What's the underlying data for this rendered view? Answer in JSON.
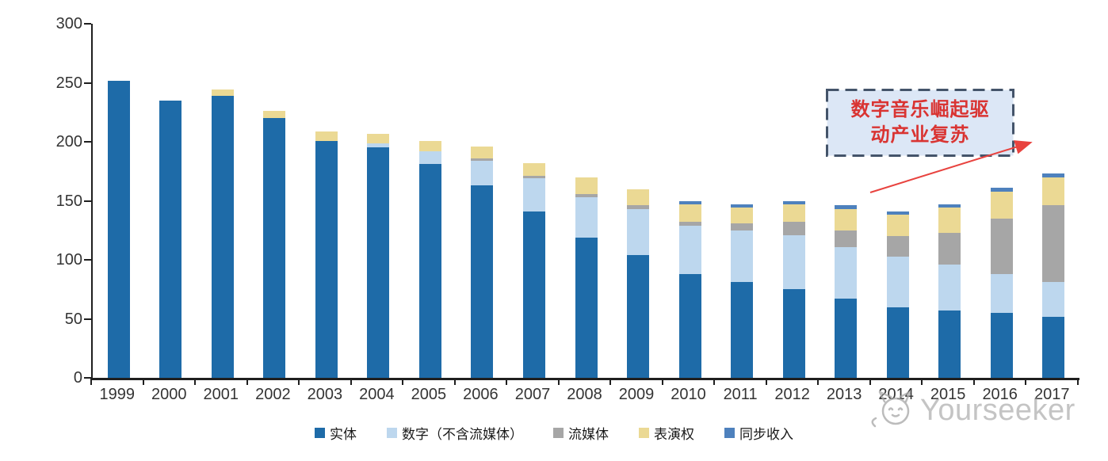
{
  "watermark": {
    "brand": "Yourseeker"
  },
  "chart_data": {
    "type": "bar",
    "stacked": true,
    "categories": [
      "1999",
      "2000",
      "2001",
      "2002",
      "2003",
      "2004",
      "2005",
      "2006",
      "2007",
      "2008",
      "2009",
      "2010",
      "2011",
      "2012",
      "2013",
      "2014",
      "2015",
      "2016",
      "2017"
    ],
    "series": [
      {
        "name": "实体",
        "color": "#1E6BA8",
        "values": [
          252,
          235,
          239,
          220,
          201,
          195,
          181,
          163,
          141,
          119,
          104,
          88,
          81,
          75,
          67,
          60,
          57,
          55,
          52
        ]
      },
      {
        "name": "数字（不含流媒体）",
        "color": "#BDD7EE",
        "values": [
          0,
          0,
          0,
          0,
          0,
          4,
          11,
          21,
          28,
          34,
          39,
          41,
          44,
          46,
          44,
          43,
          39,
          33,
          29
        ]
      },
      {
        "name": "流媒体",
        "color": "#A6A6A6",
        "values": [
          0,
          0,
          0,
          0,
          0,
          0,
          0,
          2,
          2,
          3,
          3,
          3,
          6,
          11,
          14,
          17,
          27,
          47,
          65
        ]
      },
      {
        "name": "表演权",
        "color": "#EBD994",
        "values": [
          0,
          0,
          5,
          6,
          8,
          8,
          9,
          10,
          11,
          14,
          14,
          15,
          13,
          15,
          18,
          18,
          21,
          23,
          24
        ]
      },
      {
        "name": "同步收入",
        "color": "#4E81BD",
        "values": [
          0,
          0,
          0,
          0,
          0,
          0,
          0,
          0,
          0,
          0,
          0,
          3,
          3,
          3,
          3,
          3,
          3,
          3,
          3
        ]
      }
    ],
    "ylim": [
      0,
      300
    ],
    "yticks": [
      0,
      50,
      100,
      150,
      200,
      250,
      300
    ],
    "grid": false,
    "legend_position": "bottom",
    "annotation": {
      "line1": "数字音乐崛起驱",
      "line2": "动产业复苏",
      "box_fill": "#DCE7F6",
      "box_border": "#44546A",
      "text_color": "#D93432",
      "arrow_color": "#E8433F"
    }
  }
}
